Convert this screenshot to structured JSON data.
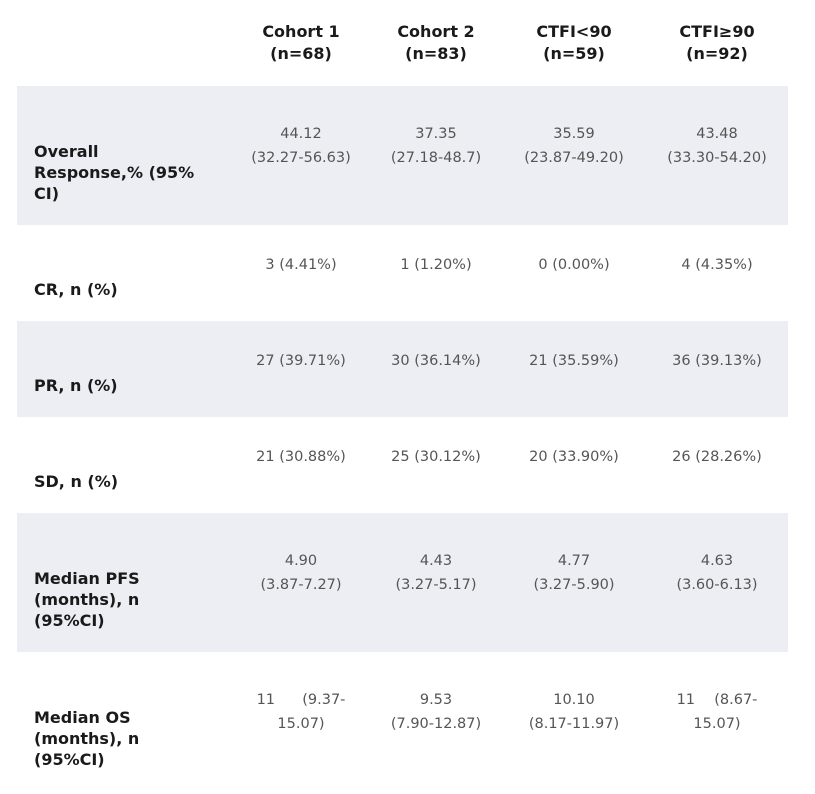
{
  "header": {
    "columns": [
      {
        "name": "Cohort 1",
        "n": "(n=68)"
      },
      {
        "name": "Cohort 2",
        "n": "(n=83)"
      },
      {
        "name": "CTFI<90",
        "n": "(n=59)"
      },
      {
        "name": "CTFI≥90",
        "n": "(n=92)"
      }
    ]
  },
  "rows": [
    {
      "label_lines": [
        "Overall",
        "Response,% (95%",
        "CI)"
      ],
      "cells": [
        [
          "44.12",
          "(32.27-56.63)"
        ],
        [
          "37.35",
          "(27.18-48.7)"
        ],
        [
          "35.59",
          "(23.87-49.20)"
        ],
        [
          "43.48",
          "(33.30-54.20)"
        ]
      ]
    },
    {
      "label_lines": [
        "CR, n (%)"
      ],
      "cells": [
        [
          "3 (4.41%)"
        ],
        [
          "1 (1.20%)"
        ],
        [
          "0 (0.00%)"
        ],
        [
          "4 (4.35%)"
        ]
      ]
    },
    {
      "label_lines": [
        "PR, n (%)"
      ],
      "cells": [
        [
          "27 (39.71%)"
        ],
        [
          "30 (36.14%)"
        ],
        [
          "21 (35.59%)"
        ],
        [
          "36 (39.13%)"
        ]
      ]
    },
    {
      "label_lines": [
        "SD, n (%)"
      ],
      "cells": [
        [
          "21 (30.88%)"
        ],
        [
          "25 (30.12%)"
        ],
        [
          "20 (33.90%)"
        ],
        [
          "26 (28.26%)"
        ]
      ]
    },
    {
      "label_lines": [
        "Median PFS",
        "(months), n",
        "(95%CI)"
      ],
      "cells": [
        [
          "4.90",
          "(3.87-7.27)"
        ],
        [
          "4.43",
          "(3.27-5.17)"
        ],
        [
          "4.77",
          "(3.27-5.90)"
        ],
        [
          "4.63",
          "(3.60-6.13)"
        ]
      ]
    },
    {
      "label_lines": [
        "Median OS",
        "(months), n",
        "(95%CI)"
      ],
      "cells": [
        [
          "11",
          "(9.37-",
          "15.07)"
        ],
        [
          "9.53",
          "(7.90-12.87)"
        ],
        [
          "10.10",
          "(8.17-11.97)"
        ],
        [
          "11",
          "(8.67-",
          "15.07)"
        ]
      ]
    }
  ]
}
